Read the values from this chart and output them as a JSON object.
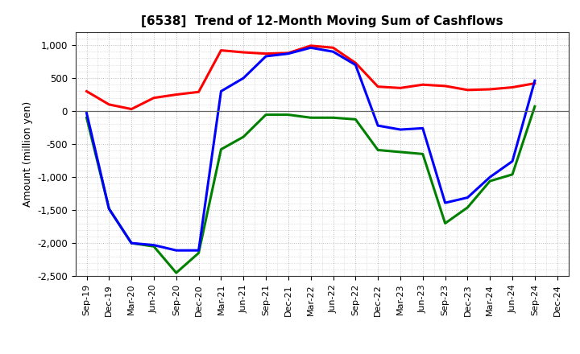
{
  "title": "[6538]  Trend of 12-Month Moving Sum of Cashflows",
  "ylabel": "Amount (million yen)",
  "background_color": "#ffffff",
  "plot_bg_color": "#ffffff",
  "grid_color": "#bbbbbb",
  "x_labels": [
    "Sep-19",
    "Dec-19",
    "Mar-20",
    "Jun-20",
    "Sep-20",
    "Dec-20",
    "Mar-21",
    "Jun-21",
    "Sep-21",
    "Dec-21",
    "Mar-22",
    "Jun-22",
    "Sep-22",
    "Dec-22",
    "Mar-23",
    "Jun-23",
    "Sep-23",
    "Dec-23",
    "Mar-24",
    "Jun-24",
    "Sep-24",
    "Dec-24"
  ],
  "operating_cashflow": [
    300,
    100,
    30,
    200,
    250,
    290,
    920,
    890,
    870,
    880,
    990,
    960,
    730,
    370,
    350,
    400,
    380,
    320,
    330,
    360,
    420,
    null
  ],
  "investing_cashflow": [
    -100,
    -1480,
    -2000,
    -2050,
    -2450,
    -2150,
    -580,
    -390,
    -55,
    -55,
    -100,
    -100,
    -125,
    -590,
    -620,
    -650,
    -1700,
    -1460,
    -1060,
    -960,
    70,
    null
  ],
  "free_cashflow": [
    -30,
    -1480,
    -2000,
    -2030,
    -2110,
    -2110,
    300,
    500,
    830,
    870,
    960,
    900,
    700,
    -220,
    -280,
    -260,
    -1390,
    -1310,
    -1000,
    -760,
    460,
    null
  ],
  "operating_color": "#ff0000",
  "investing_color": "#008000",
  "free_color": "#0000ff",
  "ylim": [
    -2500,
    1200
  ],
  "yticks": [
    -2500,
    -2000,
    -1500,
    -1000,
    -500,
    0,
    500,
    1000
  ],
  "line_width": 2.2
}
